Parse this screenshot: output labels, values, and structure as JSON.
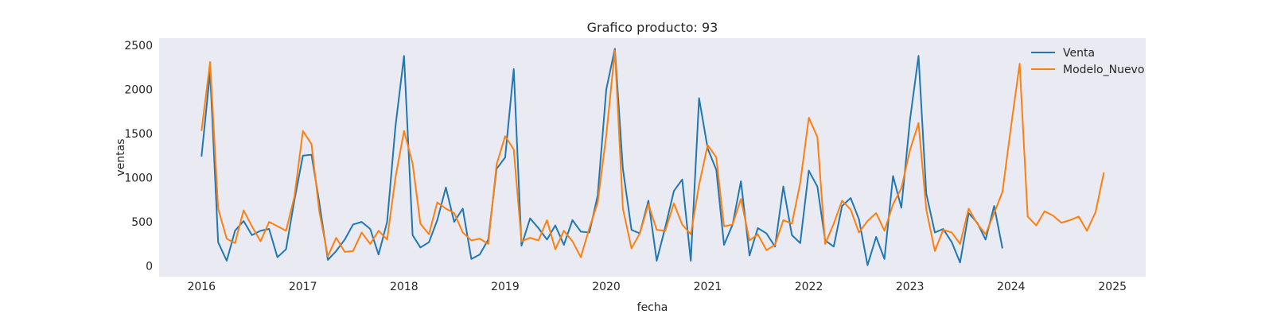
{
  "chart_data": {
    "type": "line",
    "title": "Grafico producto: 93",
    "xlabel": "fecha",
    "ylabel": "ventas",
    "ylim": [
      -120,
      2580
    ],
    "xlim": [
      "2015-08-01",
      "2025-05-01"
    ],
    "x_ticks": [
      "2016",
      "2017",
      "2018",
      "2019",
      "2020",
      "2021",
      "2022",
      "2023",
      "2024",
      "2025"
    ],
    "y_ticks": [
      0,
      500,
      1000,
      1500,
      2000,
      2500
    ],
    "grid": false,
    "legend": "top-right",
    "colors": {
      "plot_bg": "#eaeaf2",
      "Venta": "#1f77b4",
      "Modelo_Nuevo": "#ff7f0e"
    },
    "series": [
      {
        "name": "Venta",
        "start": "2016-01",
        "values": [
          1240,
          2200,
          270,
          60,
          400,
          510,
          350,
          400,
          420,
          100,
          190,
          740,
          1250,
          1260,
          720,
          70,
          170,
          300,
          470,
          500,
          420,
          130,
          500,
          1580,
          2380,
          350,
          210,
          270,
          520,
          890,
          500,
          650,
          80,
          130,
          300,
          1100,
          1230,
          2230,
          230,
          540,
          430,
          300,
          460,
          240,
          520,
          390,
          380,
          800,
          2000,
          2460,
          1100,
          410,
          370,
          740,
          60,
          440,
          850,
          980,
          60,
          1900,
          1330,
          1090,
          240,
          470,
          960,
          120,
          430,
          370,
          220,
          900,
          350,
          260,
          1080,
          900,
          290,
          220,
          680,
          770,
          530,
          10,
          330,
          80,
          1020,
          660,
          1650,
          2380,
          820,
          380,
          420,
          270,
          40,
          600,
          490,
          300,
          680,
          200
        ]
      },
      {
        "name": "Modelo_Nuevo",
        "start": "2016-01",
        "values": [
          1530,
          2310,
          650,
          310,
          260,
          630,
          450,
          280,
          500,
          450,
          400,
          780,
          1530,
          1380,
          620,
          110,
          320,
          160,
          170,
          380,
          250,
          400,
          300,
          1000,
          1530,
          1160,
          480,
          360,
          720,
          650,
          600,
          380,
          290,
          310,
          250,
          1150,
          1470,
          1320,
          280,
          320,
          290,
          520,
          190,
          400,
          280,
          100,
          430,
          720,
          1480,
          2440,
          650,
          200,
          370,
          700,
          410,
          400,
          710,
          470,
          360,
          920,
          1370,
          1230,
          450,
          470,
          760,
          290,
          360,
          180,
          240,
          520,
          480,
          940,
          1680,
          1460,
          250,
          480,
          740,
          640,
          380,
          510,
          600,
          400,
          700,
          880,
          1310,
          1620,
          640,
          170,
          410,
          380,
          250,
          650,
          480,
          360,
          600,
          840,
          1580,
          2290,
          560,
          460,
          620,
          570,
          490,
          520,
          560,
          400,
          610,
          1060
        ]
      }
    ]
  }
}
